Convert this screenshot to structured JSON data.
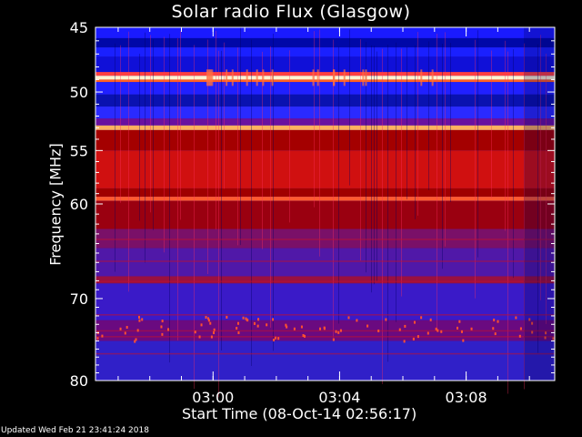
{
  "title": "Solar radio Flux (Glasgow)",
  "updated": "Updated Wed Feb 21 23:41:24 2018",
  "chart_data": {
    "type": "heatmap",
    "title": "Solar radio Flux (Glasgow)",
    "xlabel": "Start Time (08-Oct-14 02:56:17)",
    "ylabel": "Frequency [MHz]",
    "x_start": "02:56:17",
    "x_end": "03:10:48",
    "x_ticks": [
      "03:00",
      "03:04",
      "03:08"
    ],
    "ylim": [
      45,
      80
    ],
    "y_ticks": [
      45,
      50,
      55,
      60,
      70,
      80
    ],
    "y_scale": "log",
    "colormap": [
      "#1d0060",
      "#1a16ff",
      "#3a2bd0",
      "#7a1a7a",
      "#b00000",
      "#ff2020",
      "#ff8040",
      "#fff0c0"
    ],
    "background": "#000000",
    "bands": [
      {
        "from": 45.0,
        "to": 45.8,
        "color": "#1a1aff"
      },
      {
        "from": 45.8,
        "to": 46.5,
        "color": "#0008a8"
      },
      {
        "from": 46.5,
        "to": 47.2,
        "color": "#1a20ff"
      },
      {
        "from": 47.2,
        "to": 48.4,
        "color": "#1010d8"
      },
      {
        "from": 48.4,
        "to": 48.7,
        "color": "#ff4040"
      },
      {
        "from": 48.7,
        "to": 49.0,
        "color": "#fff4d0"
      },
      {
        "from": 49.0,
        "to": 49.2,
        "color": "#ff6020"
      },
      {
        "from": 49.2,
        "to": 50.2,
        "color": "#2020ff"
      },
      {
        "from": 50.2,
        "to": 51.2,
        "color": "#0a12b0"
      },
      {
        "from": 51.2,
        "to": 52.2,
        "color": "#2a2aff"
      },
      {
        "from": 52.2,
        "to": 52.8,
        "color": "#6a10a0"
      },
      {
        "from": 52.8,
        "to": 53.2,
        "color": "#ffb060"
      },
      {
        "from": 53.2,
        "to": 55.0,
        "color": "#a40000"
      },
      {
        "from": 55.0,
        "to": 58.5,
        "color": "#d01010"
      },
      {
        "from": 58.5,
        "to": 59.3,
        "color": "#a00000"
      },
      {
        "from": 59.3,
        "to": 59.7,
        "color": "#ff5a30"
      },
      {
        "from": 59.7,
        "to": 62.5,
        "color": "#9a0010"
      },
      {
        "from": 62.5,
        "to": 64.5,
        "color": "#7a1068"
      },
      {
        "from": 64.5,
        "to": 67.5,
        "color": "#5018a8"
      },
      {
        "from": 67.5,
        "to": 68.3,
        "color": "#9a1040"
      },
      {
        "from": 68.3,
        "to": 72.5,
        "color": "#3a1ac8"
      },
      {
        "from": 72.5,
        "to": 75.0,
        "color": "#6a0a80"
      },
      {
        "from": 75.0,
        "to": 80.0,
        "color": "#3020c8"
      }
    ]
  }
}
